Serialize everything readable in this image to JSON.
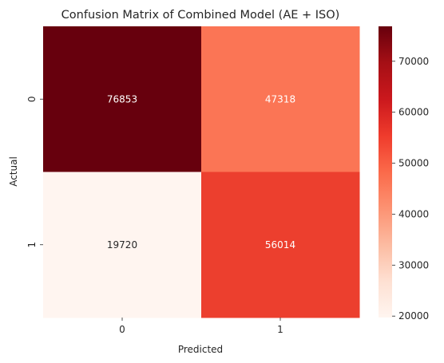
{
  "chart_data": {
    "type": "heatmap",
    "title": "Confusion Matrix of Combined Model (AE + ISO)",
    "xlabel": "Predicted",
    "ylabel": "Actual",
    "x_categories": [
      "0",
      "1"
    ],
    "y_categories": [
      "0",
      "1"
    ],
    "values": [
      [
        76853,
        47318
      ],
      [
        19720,
        56014
      ]
    ],
    "cell_labels": [
      [
        "76853",
        "47318"
      ],
      [
        "19720",
        "56014"
      ]
    ],
    "colormap": "Reds",
    "vmin": 19720,
    "vmax": 76853,
    "colorbar_ticks": [
      20000,
      30000,
      40000,
      50000,
      60000,
      70000
    ],
    "colorbar_tick_labels": [
      "20000",
      "30000",
      "40000",
      "50000",
      "60000",
      "70000"
    ],
    "cell_colors": [
      [
        "#67000d",
        "#fb7555"
      ],
      [
        "#fff5f0",
        "#ec3f2e"
      ]
    ],
    "text_colors": [
      [
        "#ffffff",
        "#ffffff"
      ],
      [
        "#262626",
        "#ffffff"
      ]
    ],
    "grid": false,
    "legend": "colorbar-right"
  }
}
